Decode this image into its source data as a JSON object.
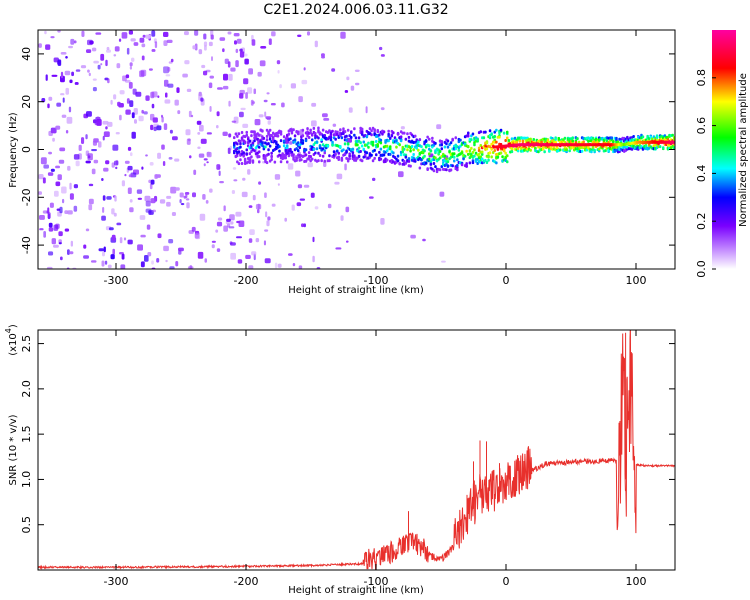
{
  "title": "C2E1.2024.006.03.11.G32",
  "chart_data": [
    {
      "type": "heatmap",
      "xlabel": "Height of straight line (km)",
      "ylabel": "Frequency (Hz)",
      "xlim": [
        -360,
        130
      ],
      "ylim": [
        -50,
        50
      ],
      "x_ticks": [
        -300,
        -200,
        -100,
        0,
        100
      ],
      "y_ticks": [
        -40,
        -20,
        0,
        20,
        40
      ],
      "colorbar": {
        "label": "Normalized spectral amplitude",
        "range": [
          0,
          1
        ],
        "ticks": [
          0.0,
          0.2,
          0.4,
          0.6,
          0.8
        ],
        "colors": [
          "#ffffff",
          "#7a00ff",
          "#0000ff",
          "#00ffff",
          "#00ff00",
          "#ffff00",
          "#ff0000",
          "#ff00a0"
        ]
      },
      "ridge": {
        "x": [
          -200,
          -150,
          -100,
          -75,
          -50,
          -40,
          -30,
          -10,
          10,
          40,
          80,
          90,
          100,
          130
        ],
        "freq": [
          1,
          2,
          2,
          0,
          -3,
          -2,
          0,
          1,
          2,
          2,
          2,
          2,
          3,
          3
        ],
        "amplitude": [
          0.35,
          0.45,
          0.55,
          0.6,
          0.6,
          0.6,
          0.7,
          0.85,
          0.95,
          0.9,
          0.85,
          0.6,
          0.75,
          0.95
        ]
      }
    },
    {
      "type": "line",
      "xlabel": "Height of straight line (km)",
      "ylabel": "SNR (10 * v/v)",
      "y_multiplier": "(x10",
      "y_multiplier_exp": "4",
      "y_multiplier_close": ")",
      "xlim": [
        -360,
        130
      ],
      "ylim": [
        0,
        2.65
      ],
      "x_ticks": [
        -300,
        -200,
        -100,
        0,
        100
      ],
      "y_ticks": [
        0.5,
        1.0,
        1.5,
        2.0,
        2.5
      ],
      "color": "#e8302c",
      "x": [
        -360,
        -300,
        -200,
        -150,
        -110,
        -100,
        -90,
        -80,
        -70,
        -60,
        -50,
        -40,
        -30,
        -20,
        -10,
        0,
        10,
        20,
        30,
        40,
        50,
        60,
        70,
        80,
        85,
        88,
        90,
        92,
        95,
        98,
        100,
        110,
        120,
        130
      ],
      "values": [
        0.03,
        0.03,
        0.04,
        0.05,
        0.07,
        0.1,
        0.16,
        0.23,
        0.28,
        0.16,
        0.1,
        0.25,
        0.55,
        0.8,
        0.82,
        0.9,
        1.0,
        1.1,
        1.17,
        1.18,
        1.19,
        1.2,
        1.2,
        1.21,
        1.2,
        1.6,
        2.3,
        1.0,
        2.1,
        1.3,
        1.16,
        1.15,
        1.15,
        1.15
      ],
      "spikes": [
        {
          "x": -75,
          "y": 0.65
        },
        {
          "x": -30,
          "y": 0.83
        },
        {
          "x": -25,
          "y": 1.2
        },
        {
          "x": -20,
          "y": 1.43
        },
        {
          "x": -15,
          "y": 1.42
        },
        {
          "x": -5,
          "y": 1.18
        },
        {
          "x": 92,
          "y": 2.62
        },
        {
          "x": 96,
          "y": 2.2
        }
      ]
    }
  ]
}
